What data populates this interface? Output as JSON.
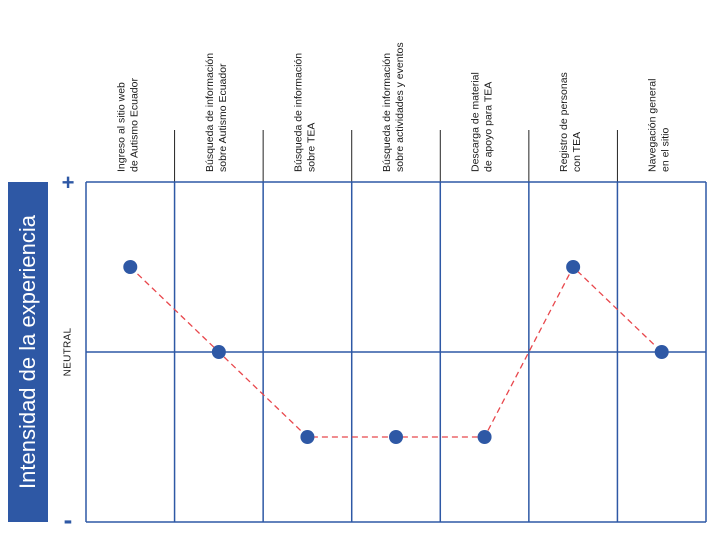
{
  "chart_data": {
    "type": "line",
    "title": "",
    "ylabel": "Intensidad de la experiencia",
    "y_markers": {
      "top": "+",
      "middle": "NEUTRAL",
      "bottom": "-"
    },
    "ylim": [
      -2,
      2
    ],
    "categories": [
      [
        "Ingreso al sitio web",
        "de Autismo Ecuador"
      ],
      [
        "Búsqueda de información",
        "sobre Autismo Ecuador"
      ],
      [
        "Búsqueda de información",
        "sobre TEA"
      ],
      [
        "Búsqueda de información",
        "sobre actividades y eventos"
      ],
      [
        "Descarga de material",
        "de apoyo para TEA"
      ],
      [
        "Registro de personas",
        "con TEA"
      ],
      [
        "Navegación general",
        "en el sitio"
      ]
    ],
    "series": [
      {
        "values": [
          1,
          0,
          -1,
          -1,
          -1,
          1,
          0
        ]
      }
    ],
    "grid": true,
    "colors": {
      "frame": "#2e58a5",
      "point": "#2e58a5",
      "line": "#e8474c"
    }
  }
}
